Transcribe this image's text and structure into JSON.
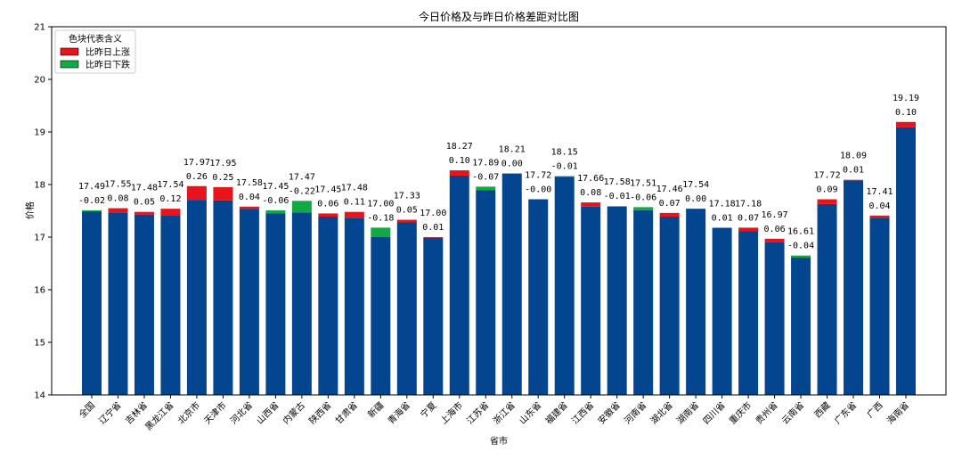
{
  "chart_data": {
    "type": "bar",
    "title": "今日价格及与昨日价格差距对比图",
    "xlabel": "省市",
    "ylabel": "价格",
    "ylim": [
      14,
      21
    ],
    "yticks": [
      14,
      15,
      16,
      17,
      18,
      19,
      20,
      21
    ],
    "grid": false,
    "legend": {
      "title": "色块代表含义",
      "placement": "top-left",
      "entries": [
        {
          "label": "比昨日上涨",
          "color": "#e8131b"
        },
        {
          "label": "比昨日下跌",
          "color": "#12a845"
        }
      ]
    },
    "colors": {
      "base": "#03468f",
      "up": "#e8131b",
      "down": "#12a845"
    },
    "categories": [
      "全国",
      "辽宁省",
      "吉林省",
      "黑龙江省",
      "北京市",
      "天津市",
      "河北省",
      "山西省",
      "内蒙古",
      "陕西省",
      "甘肃省",
      "新疆",
      "青海省",
      "宁夏",
      "上海市",
      "江苏省",
      "浙江省",
      "山东省",
      "福建省",
      "江西省",
      "安徽省",
      "河南省",
      "湖北省",
      "湖南省",
      "四川省",
      "重庆市",
      "贵州省",
      "云南省",
      "西藏",
      "广东省",
      "广西",
      "海南省"
    ],
    "values": [
      17.49,
      17.55,
      17.48,
      17.54,
      17.97,
      17.95,
      17.58,
      17.45,
      17.47,
      17.45,
      17.48,
      17.0,
      17.33,
      17.0,
      18.27,
      17.89,
      18.21,
      17.72,
      18.15,
      17.66,
      17.58,
      17.51,
      17.46,
      17.54,
      17.18,
      17.18,
      16.97,
      16.61,
      17.72,
      18.09,
      17.41,
      19.19
    ],
    "diffs": [
      -0.02,
      0.08,
      0.05,
      0.12,
      0.26,
      0.25,
      0.04,
      -0.06,
      -0.22,
      0.06,
      0.11,
      -0.18,
      0.05,
      0.01,
      0.1,
      -0.07,
      0.0,
      -0.0,
      -0.01,
      0.08,
      -0.01,
      -0.06,
      0.07,
      0.0,
      0.01,
      0.07,
      0.06,
      -0.04,
      0.09,
      0.01,
      0.04,
      0.1
    ],
    "diff_labels": [
      "-0.02",
      "0.08",
      "0.05",
      "0.12",
      "0.26",
      "0.25",
      "0.04",
      "-0.06",
      "-0.22",
      "0.06",
      "0.11",
      "-0.18",
      "0.05",
      "0.01",
      "0.10",
      "-0.07",
      "0.00",
      "-0.00",
      "-0.01",
      "0.08",
      "-0.01",
      "-0.06",
      "0.07",
      "0.00",
      "0.01",
      "0.07",
      "0.06",
      "-0.04",
      "0.09",
      "0.01",
      "0.04",
      "0.10"
    ]
  }
}
